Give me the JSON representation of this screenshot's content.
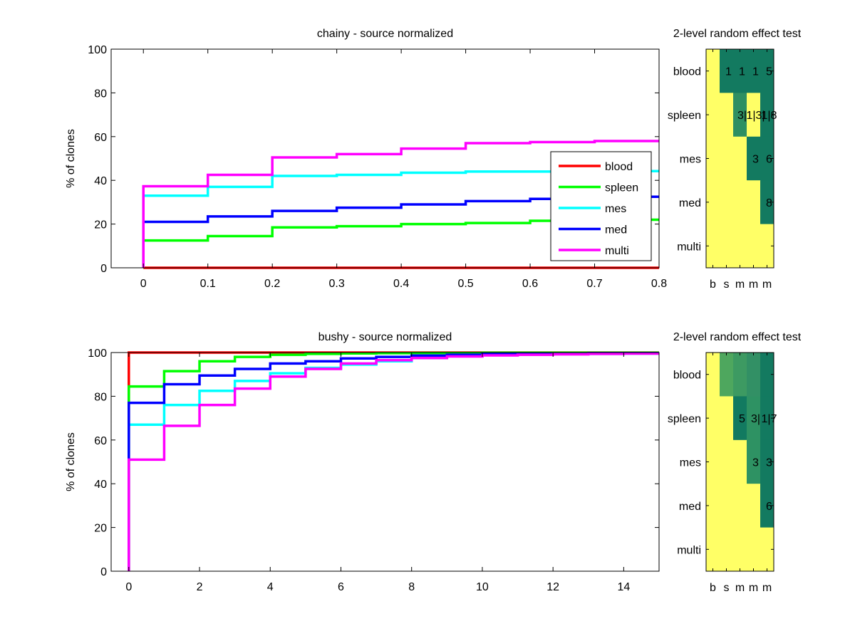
{
  "chart_data": [
    {
      "type": "line",
      "step": true,
      "title": "chainy - source normalized",
      "xlabel": "",
      "ylabel": "% of clones",
      "xlim": [
        -0.05,
        0.8
      ],
      "ylim": [
        0,
        100
      ],
      "xticks": [
        0,
        0.1,
        0.2,
        0.3,
        0.4,
        0.5,
        0.6,
        0.7,
        0.8
      ],
      "xtick_labels": [
        "0",
        "0.1",
        "0.2",
        "0.3",
        "0.4",
        "0.5",
        "0.6",
        "0.7",
        "0.8"
      ],
      "yticks": [
        0,
        20,
        40,
        60,
        80,
        100
      ],
      "ytick_labels": [
        "0",
        "20",
        "40",
        "60",
        "80",
        "100"
      ],
      "legend": {
        "position": "right",
        "entries": [
          "blood",
          "spleen",
          "mes",
          "med",
          "multi"
        ]
      },
      "x": [
        0,
        0.1,
        0.2,
        0.3,
        0.4,
        0.5,
        0.6,
        0.7,
        0.8
      ],
      "series": [
        {
          "name": "blood",
          "color": "#ff0000",
          "values": [
            0,
            0,
            0,
            0,
            0,
            0,
            0,
            0,
            0
          ]
        },
        {
          "name": "spleen",
          "color": "#00ff00",
          "values": [
            12.5,
            14.5,
            18.5,
            19,
            20,
            20.5,
            21.5,
            22,
            22
          ]
        },
        {
          "name": "mes",
          "color": "#00ffff",
          "values": [
            33,
            37,
            42,
            42.5,
            43.5,
            44,
            44,
            44.2,
            44.5
          ]
        },
        {
          "name": "med",
          "color": "#0000ff",
          "values": [
            21,
            23.5,
            26,
            27.5,
            29,
            30.5,
            31.5,
            32.5,
            33
          ]
        },
        {
          "name": "multi",
          "color": "#ff00ff",
          "values": [
            37.3,
            42.5,
            50.5,
            52,
            54.5,
            57,
            57.5,
            58,
            58.5
          ]
        }
      ]
    },
    {
      "type": "heatmap",
      "title": "2-level random effect test",
      "row_labels": [
        "blood",
        "spleen",
        "mes",
        "med",
        "multi"
      ],
      "col_labels": [
        "b",
        "s",
        "m",
        "m",
        "m"
      ],
      "colors": [
        [
          "#ffff66",
          "#137a60",
          "#137a60",
          "#137a60",
          "#137a60"
        ],
        [
          "#ffff66",
          "#ffff66",
          "#2e8f62",
          "#ffff66",
          "#137a60"
        ],
        [
          "#ffff66",
          "#ffff66",
          "#ffff66",
          "#137a60",
          "#137a60"
        ],
        [
          "#ffff66",
          "#ffff66",
          "#ffff66",
          "#ffff66",
          "#137a60"
        ],
        [
          "#ffff66",
          "#ffff66",
          "#ffff66",
          "#ffff66",
          "#ffff66"
        ]
      ],
      "annotations": [
        [
          "",
          "1",
          "1",
          "1",
          "5"
        ],
        [
          "",
          "",
          "3|",
          "1|3|",
          "1|8"
        ],
        [
          "",
          "",
          "",
          "3",
          "6"
        ],
        [
          "",
          "",
          "",
          "",
          "8"
        ],
        [
          "",
          "",
          "",
          "",
          ""
        ]
      ]
    },
    {
      "type": "line",
      "step": true,
      "title": "bushy - source normalized",
      "xlabel": "",
      "ylabel": "% of clones",
      "xlim": [
        -0.5,
        15
      ],
      "ylim": [
        0,
        100
      ],
      "xticks": [
        0,
        2,
        4,
        6,
        8,
        10,
        12,
        14
      ],
      "xtick_labels": [
        "0",
        "2",
        "4",
        "6",
        "8",
        "10",
        "12",
        "14"
      ],
      "yticks": [
        0,
        20,
        40,
        60,
        80,
        100
      ],
      "ytick_labels": [
        "0",
        "20",
        "40",
        "60",
        "80",
        "100"
      ],
      "x": [
        0,
        1,
        2,
        3,
        4,
        5,
        6,
        7,
        8,
        9,
        10,
        11,
        12,
        13,
        14,
        15
      ],
      "series": [
        {
          "name": "blood",
          "color": "#ff0000",
          "values": [
            100,
            100,
            100,
            100,
            100,
            100,
            100,
            100,
            100,
            100,
            100,
            100,
            100,
            100,
            100,
            100
          ]
        },
        {
          "name": "spleen",
          "color": "#00ff00",
          "values": [
            84.5,
            91.5,
            96,
            98,
            99,
            99.4,
            99.6,
            99.7,
            99.8,
            99.8,
            99.9,
            99.9,
            99.9,
            99.9,
            99.9,
            99.9
          ]
        },
        {
          "name": "mes",
          "color": "#00ffff",
          "values": [
            67,
            76,
            82.5,
            87,
            90.5,
            93,
            94.5,
            96,
            97.5,
            98.3,
            98.8,
            99.1,
            99.3,
            99.4,
            99.5,
            99.5
          ]
        },
        {
          "name": "med",
          "color": "#0000ff",
          "values": [
            77,
            85.5,
            89.5,
            92.5,
            95,
            96,
            97.3,
            98,
            98.6,
            99,
            99.3,
            99.5,
            99.6,
            99.7,
            99.7,
            99.7
          ]
        },
        {
          "name": "multi",
          "color": "#ff00ff",
          "values": [
            51,
            66.5,
            76,
            83.5,
            89,
            92.5,
            95,
            96.5,
            97.5,
            98.2,
            98.7,
            99,
            99.2,
            99.4,
            99.5,
            99.5
          ]
        }
      ]
    },
    {
      "type": "heatmap",
      "title": "2-level random effect test",
      "row_labels": [
        "blood",
        "spleen",
        "mes",
        "med",
        "multi"
      ],
      "col_labels": [
        "b",
        "s",
        "m",
        "m",
        "m"
      ],
      "colors": [
        [
          "#ffff66",
          "#4ea75e",
          "#3d9a62",
          "#329065",
          "#137a60"
        ],
        [
          "#ffff66",
          "#ffff66",
          "#127a60",
          "#2e9263",
          "#137a60"
        ],
        [
          "#ffff66",
          "#ffff66",
          "#ffff66",
          "#2e9263",
          "#137a60"
        ],
        [
          "#ffff66",
          "#ffff66",
          "#ffff66",
          "#ffff66",
          "#137a60"
        ],
        [
          "#ffff66",
          "#ffff66",
          "#ffff66",
          "#ffff66",
          "#ffff66"
        ]
      ],
      "annotations": [
        [
          "",
          "",
          "",
          "",
          ""
        ],
        [
          "",
          "",
          "5",
          "3|",
          "1|7"
        ],
        [
          "",
          "",
          "",
          "3",
          "3"
        ],
        [
          "",
          "",
          "",
          "",
          "6"
        ],
        [
          "",
          "",
          "",
          "",
          ""
        ]
      ]
    }
  ]
}
